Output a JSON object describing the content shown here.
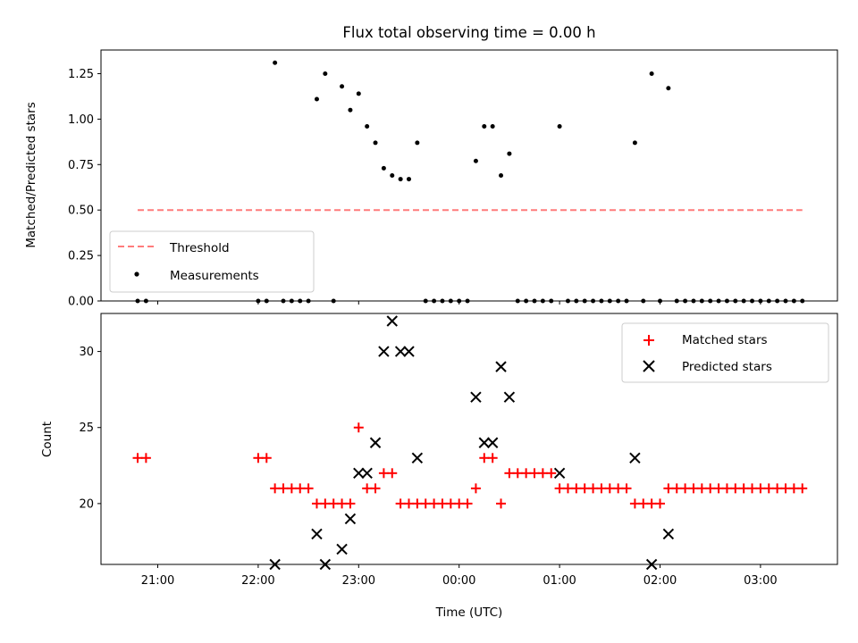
{
  "chart_data": [
    {
      "type": "scatter",
      "title": "Flux total observing time = 0.00 h",
      "xlabel": "",
      "ylabel": "Matched/Predicted stars",
      "ylim": [
        0,
        1.38
      ],
      "yticks": [
        "0.00",
        "0.25",
        "0.50",
        "0.75",
        "1.00",
        "1.25"
      ],
      "legend_position": "lower-left",
      "threshold": {
        "name": "Threshold",
        "value": 0.5,
        "x_start": "20:48",
        "x_end": "03:25",
        "color": "#ff7b7b"
      },
      "series": [
        {
          "name": "Measurements",
          "color": "#000000",
          "x": [
            "20:48",
            "20:53",
            "22:00",
            "22:05",
            "22:10",
            "22:15",
            "22:20",
            "22:25",
            "22:30",
            "22:35",
            "22:40",
            "22:45",
            "22:50",
            "22:55",
            "23:00",
            "23:05",
            "23:10",
            "23:15",
            "23:20",
            "23:25",
            "23:30",
            "23:35",
            "23:40",
            "23:45",
            "23:50",
            "23:55",
            "00:00",
            "00:05",
            "00:10",
            "00:15",
            "00:20",
            "00:25",
            "00:30",
            "00:35",
            "00:40",
            "00:45",
            "00:50",
            "00:55",
            "01:00",
            "01:05",
            "01:10",
            "01:15",
            "01:20",
            "01:25",
            "01:30",
            "01:35",
            "01:40",
            "01:45",
            "01:50",
            "01:55",
            "02:00",
            "02:05",
            "02:10",
            "02:15",
            "02:20",
            "02:25",
            "02:30",
            "02:35",
            "02:40",
            "02:45",
            "02:50",
            "02:55",
            "03:00",
            "03:05",
            "03:10",
            "03:15",
            "03:20",
            "03:25"
          ],
          "values": [
            0,
            0,
            0,
            0,
            1.31,
            0,
            0,
            0,
            0,
            1.11,
            1.25,
            0,
            1.18,
            1.05,
            1.14,
            0.96,
            0.87,
            0.73,
            0.69,
            0.67,
            0.67,
            0.87,
            0,
            0,
            0,
            0,
            0,
            0,
            0.77,
            0.96,
            0.96,
            0.69,
            0.81,
            0,
            0,
            0,
            0,
            0,
            0.96,
            0,
            0,
            0,
            0,
            0,
            0,
            0,
            0,
            0.87,
            0,
            1.25,
            0,
            1.17,
            0,
            0,
            0,
            0,
            0,
            0,
            0,
            0,
            0,
            0,
            0,
            0,
            0,
            0,
            0,
            0
          ]
        }
      ]
    },
    {
      "type": "scatter",
      "title": "",
      "xlabel": "Time (UTC)",
      "ylabel": "Count",
      "ylim": [
        16,
        32.5
      ],
      "yticks": [
        "20",
        "25",
        "30"
      ],
      "xticks": [
        "21:00",
        "22:00",
        "23:00",
        "00:00",
        "01:00",
        "02:00",
        "03:00"
      ],
      "legend_position": "top-right",
      "series": [
        {
          "name": "Matched stars",
          "marker": "+",
          "color": "#ff0000",
          "x": [
            "20:48",
            "20:53",
            "22:00",
            "22:05",
            "22:10",
            "22:15",
            "22:20",
            "22:25",
            "22:30",
            "22:35",
            "22:40",
            "22:45",
            "22:50",
            "22:55",
            "23:00",
            "23:05",
            "23:10",
            "23:15",
            "23:20",
            "23:25",
            "23:30",
            "23:35",
            "23:40",
            "23:45",
            "23:50",
            "23:55",
            "00:00",
            "00:05",
            "00:10",
            "00:15",
            "00:20",
            "00:25",
            "00:30",
            "00:35",
            "00:40",
            "00:45",
            "00:50",
            "00:55",
            "01:00",
            "01:05",
            "01:10",
            "01:15",
            "01:20",
            "01:25",
            "01:30",
            "01:35",
            "01:40",
            "01:45",
            "01:50",
            "01:55",
            "02:00",
            "02:05",
            "02:10",
            "02:15",
            "02:20",
            "02:25",
            "02:30",
            "02:35",
            "02:40",
            "02:45",
            "02:50",
            "02:55",
            "03:00",
            "03:05",
            "03:10",
            "03:15",
            "03:20",
            "03:25"
          ],
          "values": [
            23,
            23,
            23,
            23,
            21,
            21,
            21,
            21,
            21,
            20,
            20,
            20,
            20,
            20,
            25,
            21,
            21,
            22,
            22,
            20,
            20,
            20,
            20,
            20,
            20,
            20,
            20,
            20,
            21,
            23,
            23,
            20,
            22,
            22,
            22,
            22,
            22,
            22,
            21,
            21,
            21,
            21,
            21,
            21,
            21,
            21,
            21,
            20,
            20,
            20,
            20,
            21,
            21,
            21,
            21,
            21,
            21,
            21,
            21,
            21,
            21,
            21,
            21,
            21,
            21,
            21,
            21,
            21
          ]
        },
        {
          "name": "Predicted stars",
          "marker": "x",
          "color": "#000000",
          "x": [
            "22:10",
            "22:35",
            "22:40",
            "22:50",
            "22:55",
            "23:00",
            "23:05",
            "23:10",
            "23:15",
            "23:20",
            "23:25",
            "23:30",
            "23:35",
            "00:10",
            "00:15",
            "00:20",
            "00:25",
            "00:30",
            "01:00",
            "01:45",
            "01:55",
            "02:05"
          ],
          "values": [
            16,
            18,
            16,
            17,
            19,
            22,
            22,
            24,
            30,
            32,
            30,
            30,
            23,
            27,
            24,
            24,
            29,
            27,
            22,
            23,
            16,
            18
          ]
        }
      ]
    }
  ]
}
